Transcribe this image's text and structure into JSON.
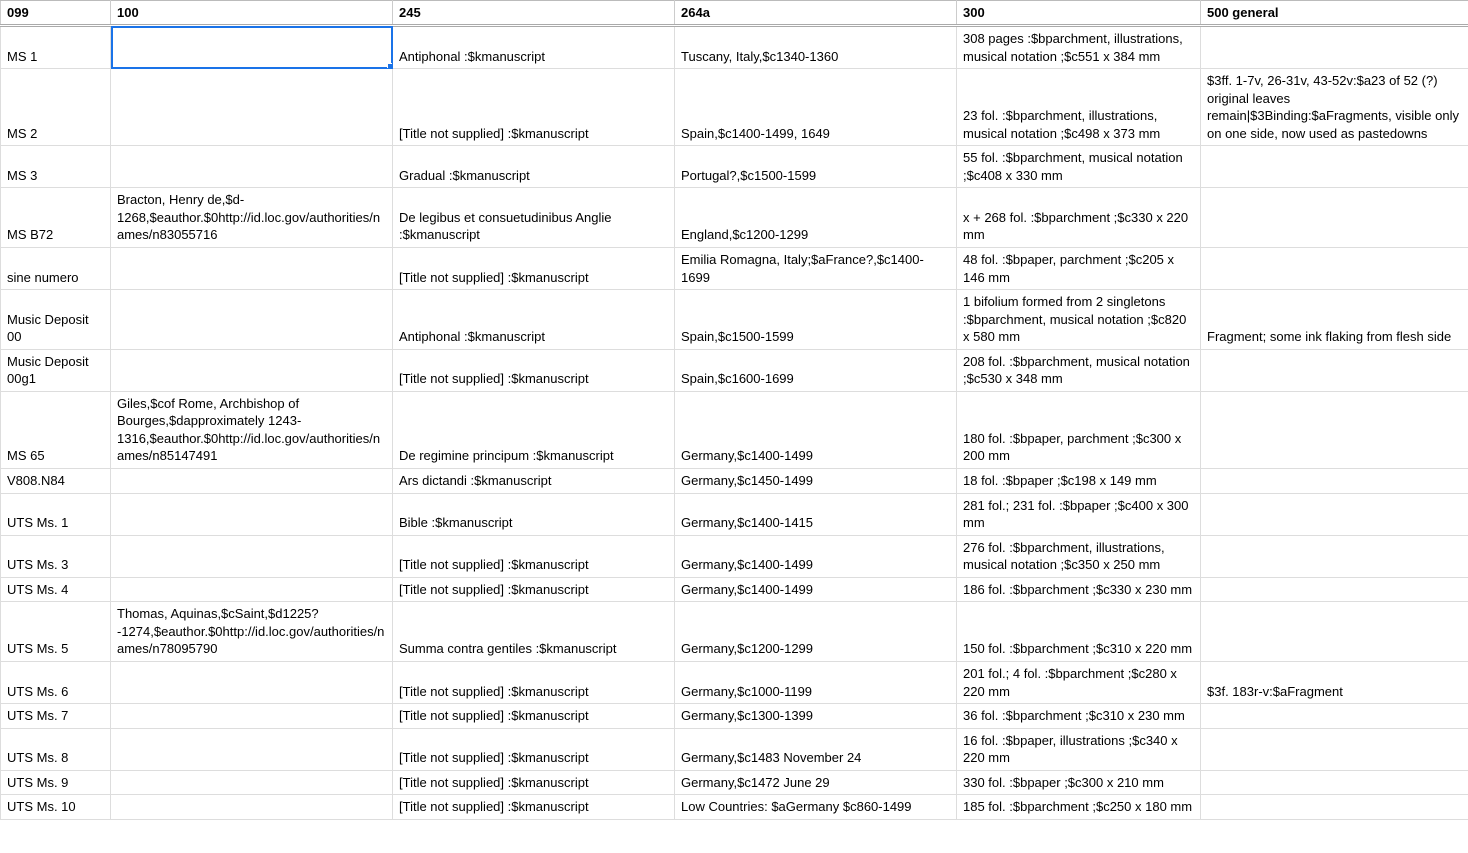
{
  "columns": [
    {
      "key": "c099",
      "label": "099",
      "class": "col-099"
    },
    {
      "key": "c100",
      "label": "100",
      "class": "col-100"
    },
    {
      "key": "c245",
      "label": "245",
      "class": "col-245"
    },
    {
      "key": "c264a",
      "label": "264a",
      "class": "col-264a"
    },
    {
      "key": "c300",
      "label": "300",
      "class": "col-300"
    },
    {
      "key": "c500",
      "label": "500 general",
      "class": "col-500"
    }
  ],
  "selected": {
    "row": 0,
    "col": 1
  },
  "rows": [
    {
      "c099": "MS 1",
      "c100": "",
      "c245": "Antiphonal :$kmanuscript",
      "c264a": "Tuscany, Italy,$c1340-1360",
      "c300": "308 pages :$bparchment, illustrations, musical notation ;$c551 x 384 mm",
      "c500": ""
    },
    {
      "c099": "MS 2",
      "c100": "",
      "c245": "[Title not supplied] :$kmanuscript",
      "c264a": "Spain,$c1400-1499, 1649",
      "c300": "23 fol. :$bparchment, illustrations, musical notation ;$c498 x 373 mm",
      "c500": "$3ff. 1-7v, 26-31v, 43-52v:$a23 of 52 (?) original leaves remain|$3Binding:$aFragments, visible only on one side, now used as pastedowns"
    },
    {
      "c099": "MS 3",
      "c100": "",
      "c245": "Gradual :$kmanuscript",
      "c264a": "Portugal?,$c1500-1599",
      "c300": "55 fol. :$bparchment, musical notation ;$c408 x 330 mm",
      "c500": ""
    },
    {
      "c099": "MS B72",
      "c100": "Bracton, Henry de,$d-1268,$eauthor.$0http://id.loc.gov/authorities/names/n83055716",
      "c245": "De legibus et consuetudinibus Anglie :$kmanuscript",
      "c264a": "England,$c1200-1299",
      "c300": "x + 268 fol. :$bparchment ;$c330 x 220 mm",
      "c500": ""
    },
    {
      "c099": "sine numero",
      "c100": "",
      "c245": "[Title not supplied] :$kmanuscript",
      "c264a": "Emilia Romagna, Italy;$aFrance?,$c1400-1699",
      "c300": "48 fol. :$bpaper, parchment ;$c205 x 146 mm",
      "c500": ""
    },
    {
      "c099": "Music Deposit 00",
      "c100": "",
      "c245": "Antiphonal :$kmanuscript",
      "c264a": "Spain,$c1500-1599",
      "c300": "1 bifolium formed from 2 singletons :$bparchment, musical notation ;$c820 x 580 mm",
      "c500": "Fragment; some ink flaking from flesh side"
    },
    {
      "c099": "Music Deposit 00g1",
      "c100": "",
      "c245": "[Title not supplied] :$kmanuscript",
      "c264a": "Spain,$c1600-1699",
      "c300": "208 fol. :$bparchment, musical notation ;$c530 x 348 mm",
      "c500": ""
    },
    {
      "c099": "MS 65",
      "c100": "Giles,$cof Rome, Archbishop of Bourges,$dapproximately 1243-1316,$eauthor.$0http://id.loc.gov/authorities/names/n85147491",
      "c245": "De regimine principum :$kmanuscript",
      "c264a": "Germany,$c1400-1499",
      "c300": "180 fol. :$bpaper, parchment ;$c300 x 200 mm",
      "c500": ""
    },
    {
      "c099": "V808.N84",
      "c100": "",
      "c245": "Ars dictandi :$kmanuscript",
      "c264a": "Germany,$c1450-1499",
      "c300": "18 fol. :$bpaper ;$c198 x 149 mm",
      "c500": ""
    },
    {
      "c099": "UTS Ms. 1",
      "c100": "",
      "c245": "Bible :$kmanuscript",
      "c264a": "Germany,$c1400-1415",
      "c300": "281 fol.; 231 fol. :$bpaper ;$c400 x 300 mm",
      "c500": ""
    },
    {
      "c099": "UTS Ms. 3",
      "c100": "",
      "c245": "[Title not supplied] :$kmanuscript",
      "c264a": "Germany,$c1400-1499",
      "c300": "276 fol. :$bparchment, illustrations, musical notation ;$c350 x 250 mm",
      "c500": ""
    },
    {
      "c099": "UTS Ms. 4",
      "c100": "",
      "c245": "[Title not supplied] :$kmanuscript",
      "c264a": "Germany,$c1400-1499",
      "c300": "186 fol. :$bparchment ;$c330 x 230 mm",
      "c500": ""
    },
    {
      "c099": "UTS Ms. 5",
      "c100": "Thomas, Aquinas,$cSaint,$d1225?-1274,$eauthor.$0http://id.loc.gov/authorities/names/n78095790",
      "c245": "Summa contra gentiles :$kmanuscript",
      "c264a": "Germany,$c1200-1299",
      "c300": "150 fol. :$bparchment ;$c310 x 220 mm",
      "c500": ""
    },
    {
      "c099": "UTS Ms. 6",
      "c100": "",
      "c245": "[Title not supplied] :$kmanuscript",
      "c264a": "Germany,$c1000-1199",
      "c300": "201 fol.; 4 fol. :$bparchment ;$c280 x 220 mm",
      "c500": "$3f. 183r-v:$aFragment"
    },
    {
      "c099": "UTS Ms. 7",
      "c100": "",
      "c245": "[Title not supplied] :$kmanuscript",
      "c264a": "Germany,$c1300-1399",
      "c300": "36 fol. :$bparchment ;$c310 x 230 mm",
      "c500": ""
    },
    {
      "c099": "UTS Ms. 8",
      "c100": "",
      "c245": "[Title not supplied] :$kmanuscript",
      "c264a": "Germany,$c1483 November 24",
      "c300": "16 fol. :$bpaper, illustrations ;$c340 x 220 mm",
      "c500": ""
    },
    {
      "c099": "UTS Ms. 9",
      "c100": "",
      "c245": "[Title not supplied] :$kmanuscript",
      "c264a": "Germany,$c1472 June 29",
      "c300": "330 fol. :$bpaper ;$c300 x 210 mm",
      "c500": ""
    },
    {
      "c099": "UTS Ms. 10",
      "c100": "",
      "c245": "[Title not supplied] :$kmanuscript",
      "c264a": "Low Countries: $aGermany $c860-1499",
      "c300": "185 fol. :$bparchment ;$c250 x 180 mm",
      "c500": ""
    }
  ]
}
